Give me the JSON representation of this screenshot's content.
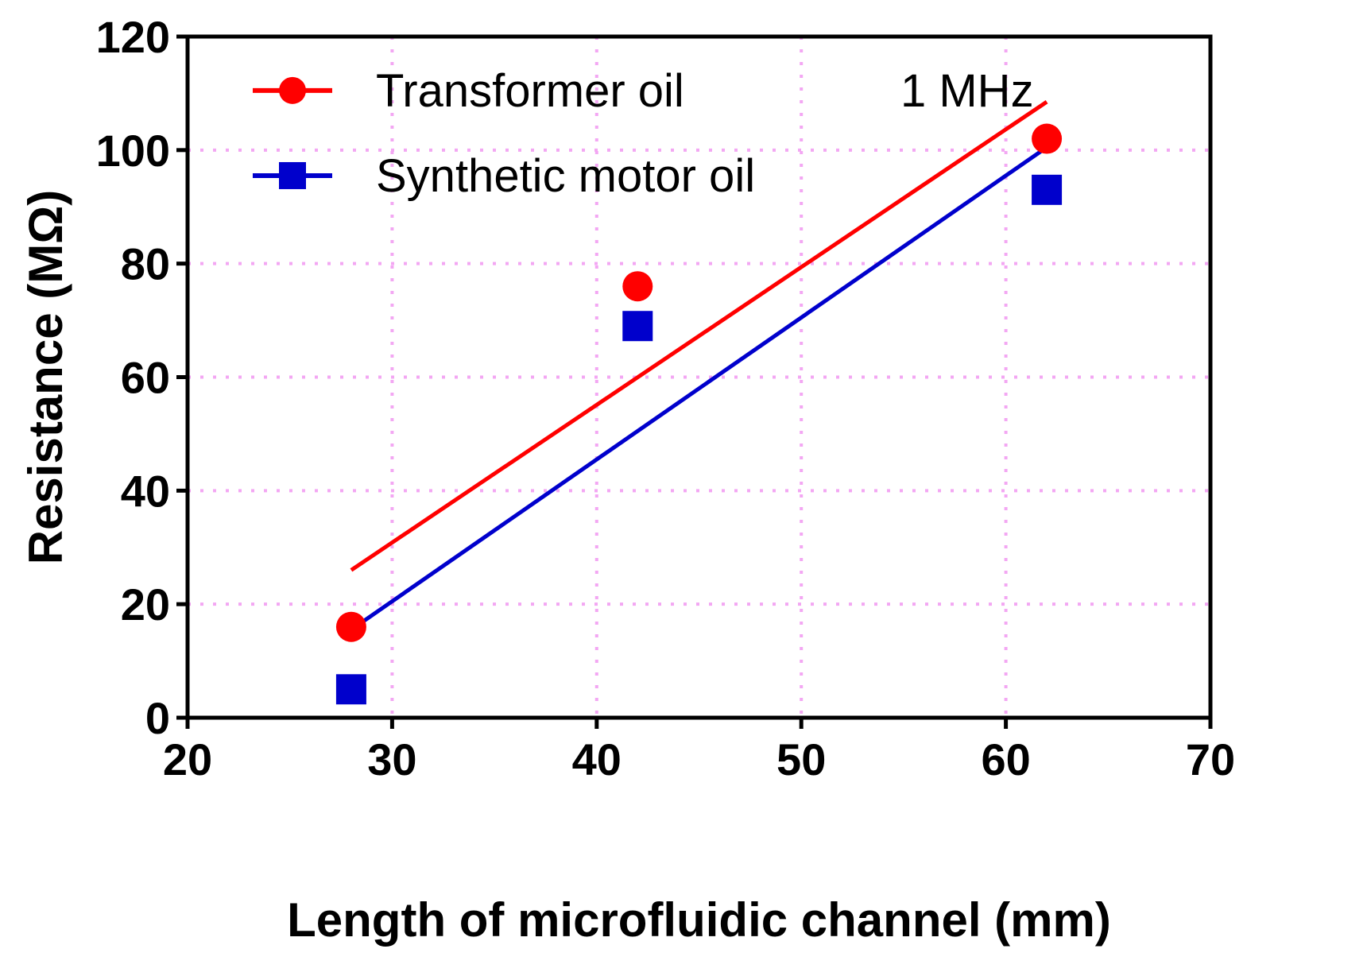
{
  "chart_data": {
    "type": "scatter",
    "xlabel": "Length of microfluidic channel (mm)",
    "ylabel": "Resistance (MΩ)",
    "xlim": [
      20,
      70
    ],
    "ylim": [
      0,
      120
    ],
    "xticks": [
      20,
      30,
      40,
      50,
      60,
      70
    ],
    "yticks": [
      0,
      20,
      40,
      60,
      80,
      100,
      120
    ],
    "grid": true,
    "legend_position": "top-left",
    "annotation": "1 MHz",
    "series": [
      {
        "name": "Transformer oil",
        "color": "#ff0000",
        "marker": "circle",
        "points": [
          {
            "x": 28,
            "y": 16
          },
          {
            "x": 42,
            "y": 76
          },
          {
            "x": 62,
            "y": 102
          }
        ],
        "fit_line": [
          {
            "x": 28,
            "y": 26
          },
          {
            "x": 62,
            "y": 108.5
          }
        ]
      },
      {
        "name": "Synthetic motor oil",
        "color": "#0000cc",
        "marker": "square",
        "points": [
          {
            "x": 28,
            "y": 5
          },
          {
            "x": 42,
            "y": 69
          },
          {
            "x": 62,
            "y": 93
          }
        ],
        "fit_line": [
          {
            "x": 28,
            "y": 15.5
          },
          {
            "x": 62,
            "y": 100.5
          }
        ]
      }
    ]
  }
}
